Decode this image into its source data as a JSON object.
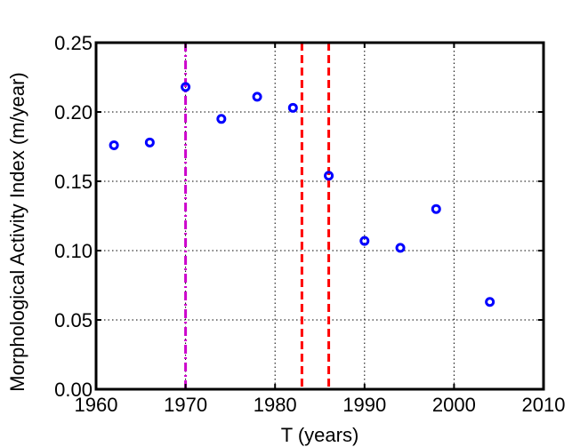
{
  "chart_data": {
    "type": "scatter",
    "xlabel": "T (years)",
    "ylabel": "Morphological Activity Index (m/year)",
    "xlim": [
      1960,
      2010
    ],
    "ylim": [
      0,
      0.25
    ],
    "x_ticks": [
      "1960",
      "1970",
      "1980",
      "1990",
      "2000",
      "2010"
    ],
    "y_ticks": [
      "0.00",
      "0.05",
      "0.10",
      "0.15",
      "0.20",
      "0.25"
    ],
    "grid": true,
    "marker_color": "#0000ff",
    "series": [
      {
        "points": [
          {
            "x": 1962,
            "y": 0.176
          },
          {
            "x": 1966,
            "y": 0.178
          },
          {
            "x": 1970,
            "y": 0.218
          },
          {
            "x": 1974,
            "y": 0.195
          },
          {
            "x": 1978,
            "y": 0.211
          },
          {
            "x": 1982,
            "y": 0.203
          },
          {
            "x": 1986,
            "y": 0.154
          },
          {
            "x": 1990,
            "y": 0.107
          },
          {
            "x": 1994,
            "y": 0.102
          },
          {
            "x": 1998,
            "y": 0.13
          },
          {
            "x": 2004,
            "y": 0.063
          }
        ]
      }
    ],
    "reference_lines": [
      {
        "x": 1970,
        "color": "#cc00cc",
        "style": "dash-dot"
      },
      {
        "x": 1983,
        "color": "#ff0000",
        "style": "dashed"
      },
      {
        "x": 1986,
        "color": "#ff0000",
        "style": "dashed"
      }
    ]
  }
}
